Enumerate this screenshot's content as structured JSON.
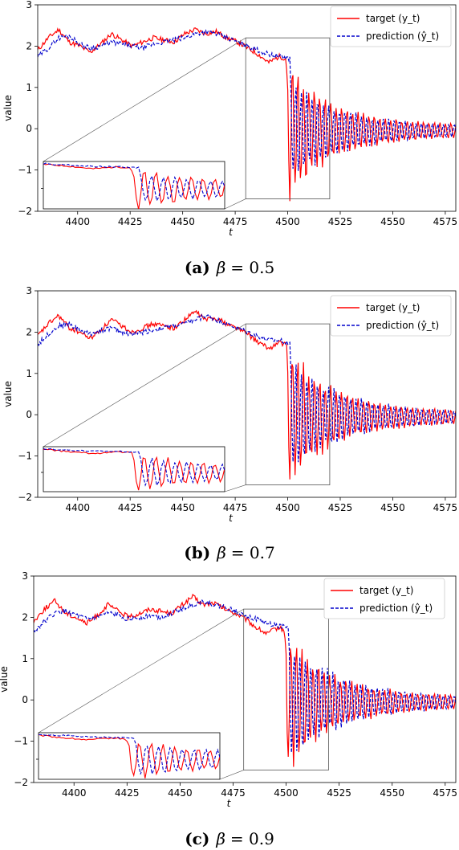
{
  "chart_data": [
    {
      "type": "line",
      "caption": {
        "label": "(a)",
        "beta": "β",
        "eq": "= 0.5"
      },
      "xlabel": "t",
      "ylabel": "value",
      "xlim": [
        4381,
        4580
      ],
      "ylim": [
        -2,
        3
      ],
      "xticks": [
        "4400",
        "4425",
        "4450",
        "4475",
        "4500",
        "4525",
        "4550",
        "4575"
      ],
      "yticks": [
        "−2",
        "−1",
        "0",
        "1",
        "2",
        "3"
      ],
      "legend": {
        "position": "top-right",
        "target": "target (y_t)",
        "prediction": "prediction (ŷ_t)"
      },
      "colors": {
        "target": "#ff0000",
        "prediction": "#0000cc"
      },
      "zoom_region": {
        "x": [
          4480,
          4520
        ],
        "y": [
          -1.7,
          2.2
        ]
      },
      "pivot_x": 4500,
      "series": [
        {
          "name": "target",
          "knots": [
            [
              4381,
              1.9
            ],
            [
              4386,
              2.2
            ],
            [
              4391,
              2.4
            ],
            [
              4396,
              2.1
            ],
            [
              4401,
              2.0
            ],
            [
              4406,
              1.85
            ],
            [
              4411,
              2.05
            ],
            [
              4416,
              2.3
            ],
            [
              4421,
              2.15
            ],
            [
              4426,
              2.0
            ],
            [
              4431,
              2.1
            ],
            [
              4436,
              2.2
            ],
            [
              4441,
              2.15
            ],
            [
              4446,
              2.1
            ],
            [
              4451,
              2.3
            ],
            [
              4456,
              2.4
            ],
            [
              4461,
              2.3
            ],
            [
              4466,
              2.35
            ],
            [
              4471,
              2.2
            ],
            [
              4476,
              2.1
            ],
            [
              4481,
              1.95
            ],
            [
              4486,
              1.8
            ],
            [
              4491,
              1.6
            ],
            [
              4496,
              1.75
            ],
            [
              4499,
              1.7
            ]
          ],
          "osc": {
            "amp": 1.55,
            "decay": 0.045,
            "floor": 0.12,
            "period": 2.6
          }
        },
        {
          "name": "prediction",
          "knots": [
            [
              4381,
              1.75
            ],
            [
              4386,
              1.95
            ],
            [
              4391,
              2.2
            ],
            [
              4396,
              2.25
            ],
            [
              4401,
              2.05
            ],
            [
              4406,
              1.95
            ],
            [
              4411,
              2.0
            ],
            [
              4416,
              2.1
            ],
            [
              4421,
              2.05
            ],
            [
              4426,
              2.0
            ],
            [
              4431,
              1.95
            ],
            [
              4436,
              2.05
            ],
            [
              4441,
              2.1
            ],
            [
              4446,
              2.15
            ],
            [
              4451,
              2.2
            ],
            [
              4456,
              2.3
            ],
            [
              4461,
              2.35
            ],
            [
              4466,
              2.3
            ],
            [
              4471,
              2.2
            ],
            [
              4476,
              2.1
            ],
            [
              4481,
              2.0
            ],
            [
              4486,
              1.9
            ],
            [
              4491,
              1.8
            ],
            [
              4496,
              1.75
            ],
            [
              4501,
              1.7
            ]
          ],
          "osc": {
            "amp": 1.05,
            "decay": 0.04,
            "floor": 0.1,
            "period": 2.6
          }
        }
      ]
    },
    {
      "type": "line",
      "caption": {
        "label": "(b)",
        "beta": "β",
        "eq": "= 0.7"
      },
      "xlabel": "t",
      "ylabel": "value",
      "xlim": [
        4381,
        4580
      ],
      "ylim": [
        -2,
        3
      ],
      "xticks": [
        "4400",
        "4425",
        "4450",
        "4475",
        "4500",
        "4525",
        "4550",
        "4575"
      ],
      "yticks": [
        "−2",
        "−1",
        "0",
        "1",
        "2",
        "3"
      ],
      "legend": {
        "position": "top-right",
        "target": "target (y_t)",
        "prediction": "prediction (ŷ_t)"
      },
      "colors": {
        "target": "#ff0000",
        "prediction": "#0000cc"
      },
      "zoom_region": {
        "x": [
          4480,
          4520
        ],
        "y": [
          -1.7,
          2.2
        ]
      },
      "pivot_x": 4500,
      "series": [
        {
          "name": "target",
          "knots": [
            [
              4381,
              1.9
            ],
            [
              4386,
              2.2
            ],
            [
              4391,
              2.4
            ],
            [
              4396,
              2.1
            ],
            [
              4401,
              2.0
            ],
            [
              4406,
              1.85
            ],
            [
              4411,
              2.05
            ],
            [
              4416,
              2.3
            ],
            [
              4421,
              2.15
            ],
            [
              4426,
              2.0
            ],
            [
              4431,
              2.1
            ],
            [
              4436,
              2.2
            ],
            [
              4441,
              2.15
            ],
            [
              4446,
              2.1
            ],
            [
              4451,
              2.3
            ],
            [
              4456,
              2.5
            ],
            [
              4461,
              2.3
            ],
            [
              4466,
              2.35
            ],
            [
              4471,
              2.2
            ],
            [
              4476,
              2.1
            ],
            [
              4481,
              1.95
            ],
            [
              4486,
              1.75
            ],
            [
              4491,
              1.6
            ],
            [
              4496,
              1.75
            ],
            [
              4499,
              1.7
            ]
          ],
          "osc": {
            "amp": 1.55,
            "decay": 0.045,
            "floor": 0.12,
            "period": 2.6
          }
        },
        {
          "name": "prediction",
          "knots": [
            [
              4381,
              1.7
            ],
            [
              4386,
              1.95
            ],
            [
              4391,
              2.15
            ],
            [
              4396,
              2.2
            ],
            [
              4401,
              2.05
            ],
            [
              4406,
              1.95
            ],
            [
              4411,
              2.05
            ],
            [
              4416,
              2.1
            ],
            [
              4421,
              2.0
            ],
            [
              4426,
              1.95
            ],
            [
              4431,
              2.0
            ],
            [
              4436,
              2.05
            ],
            [
              4441,
              2.1
            ],
            [
              4446,
              2.15
            ],
            [
              4451,
              2.2
            ],
            [
              4456,
              2.3
            ],
            [
              4461,
              2.4
            ],
            [
              4466,
              2.3
            ],
            [
              4471,
              2.2
            ],
            [
              4476,
              2.1
            ],
            [
              4481,
              2.0
            ],
            [
              4486,
              1.9
            ],
            [
              4491,
              1.8
            ],
            [
              4496,
              1.8
            ],
            [
              4501,
              1.75
            ]
          ],
          "osc": {
            "amp": 1.2,
            "decay": 0.04,
            "floor": 0.1,
            "period": 2.6
          }
        }
      ]
    },
    {
      "type": "line",
      "caption": {
        "label": "(c)",
        "beta": "β",
        "eq": "= 0.9"
      },
      "xlabel": "t",
      "ylabel": "value",
      "xlim": [
        4381,
        4580
      ],
      "ylim": [
        -2,
        3
      ],
      "xticks": [
        "4400",
        "4425",
        "4450",
        "4475",
        "4500",
        "4525",
        "4550",
        "4575"
      ],
      "yticks": [
        "−2",
        "−1",
        "0",
        "1",
        "2",
        "3"
      ],
      "legend": {
        "position": "top-right",
        "target": "target (y_t)",
        "prediction": "prediction (ŷ_t)"
      },
      "colors": {
        "target": "#ff0000",
        "prediction": "#0000cc"
      },
      "zoom_region": {
        "x": [
          4480,
          4520
        ],
        "y": [
          -1.7,
          2.2
        ]
      },
      "pivot_x": 4500,
      "series": [
        {
          "name": "target",
          "knots": [
            [
              4381,
              1.9
            ],
            [
              4386,
              2.2
            ],
            [
              4391,
              2.4
            ],
            [
              4396,
              2.1
            ],
            [
              4401,
              2.0
            ],
            [
              4406,
              1.85
            ],
            [
              4411,
              2.05
            ],
            [
              4416,
              2.3
            ],
            [
              4421,
              2.15
            ],
            [
              4426,
              2.0
            ],
            [
              4431,
              2.1
            ],
            [
              4436,
              2.2
            ],
            [
              4441,
              2.15
            ],
            [
              4446,
              2.1
            ],
            [
              4451,
              2.3
            ],
            [
              4456,
              2.5
            ],
            [
              4461,
              2.3
            ],
            [
              4466,
              2.35
            ],
            [
              4471,
              2.2
            ],
            [
              4476,
              2.1
            ],
            [
              4481,
              1.95
            ],
            [
              4486,
              1.75
            ],
            [
              4491,
              1.6
            ],
            [
              4496,
              1.75
            ],
            [
              4499,
              1.7
            ]
          ],
          "osc": {
            "amp": 1.55,
            "decay": 0.045,
            "floor": 0.12,
            "period": 2.6
          }
        },
        {
          "name": "prediction",
          "knots": [
            [
              4381,
              1.65
            ],
            [
              4386,
              1.9
            ],
            [
              4391,
              2.1
            ],
            [
              4396,
              2.15
            ],
            [
              4401,
              2.05
            ],
            [
              4406,
              1.95
            ],
            [
              4411,
              2.0
            ],
            [
              4416,
              2.1
            ],
            [
              4421,
              2.05
            ],
            [
              4426,
              1.95
            ],
            [
              4431,
              2.0
            ],
            [
              4436,
              2.05
            ],
            [
              4441,
              2.0
            ],
            [
              4446,
              2.1
            ],
            [
              4451,
              2.2
            ],
            [
              4456,
              2.3
            ],
            [
              4461,
              2.4
            ],
            [
              4466,
              2.3
            ],
            [
              4471,
              2.25
            ],
            [
              4476,
              2.15
            ],
            [
              4481,
              2.05
            ],
            [
              4486,
              1.95
            ],
            [
              4491,
              1.85
            ],
            [
              4496,
              1.8
            ],
            [
              4501,
              1.75
            ]
          ],
          "osc": {
            "amp": 1.3,
            "decay": 0.04,
            "floor": 0.1,
            "period": 2.6
          }
        }
      ]
    }
  ]
}
